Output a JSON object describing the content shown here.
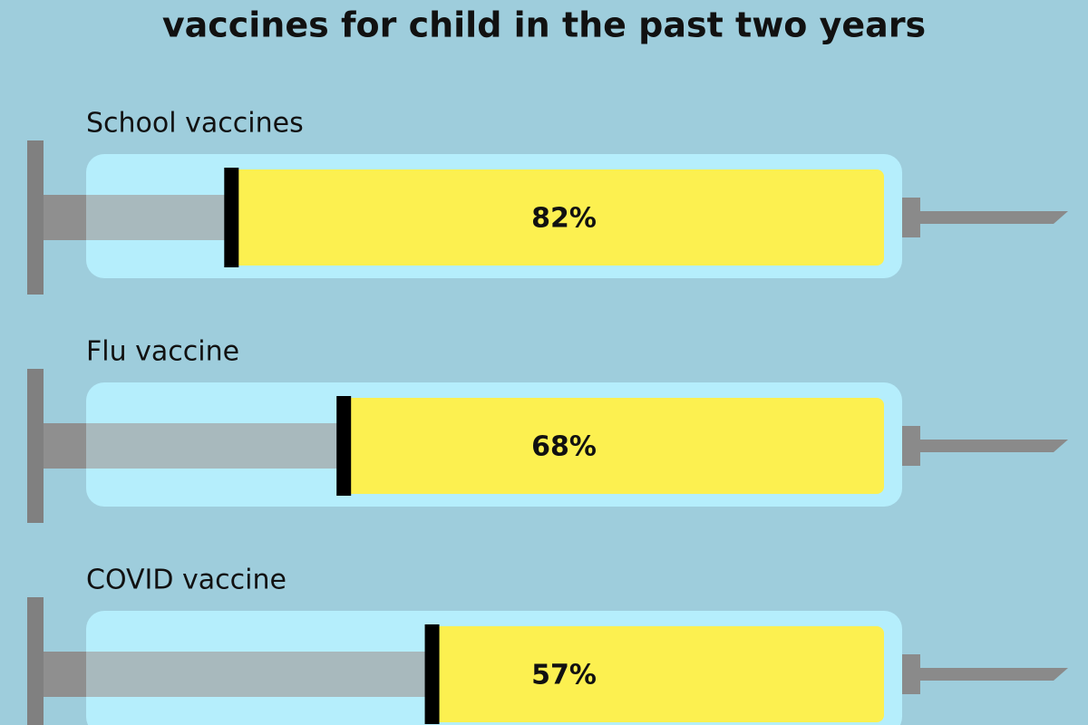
{
  "chart_data": {
    "type": "bar",
    "title": "vaccines for child in the past two years",
    "categories": [
      "School vaccines",
      "Flu vaccine",
      "COVID vaccine"
    ],
    "values": [
      82,
      68,
      57
    ],
    "value_labels": [
      "82%",
      "68%",
      "57%"
    ],
    "color": "#fcf050",
    "xlim": [
      0,
      100
    ]
  }
}
